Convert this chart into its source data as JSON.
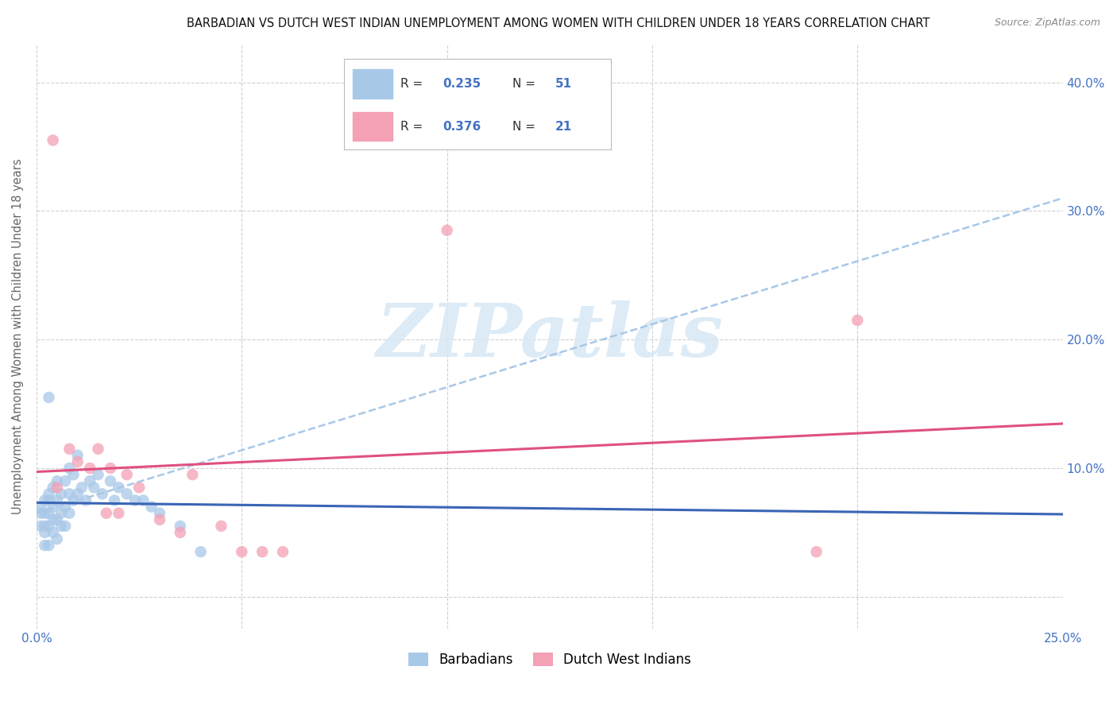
{
  "title": "BARBADIAN VS DUTCH WEST INDIAN UNEMPLOYMENT AMONG WOMEN WITH CHILDREN UNDER 18 YEARS CORRELATION CHART",
  "source": "Source: ZipAtlas.com",
  "ylabel": "Unemployment Among Women with Children Under 18 years",
  "xlim": [
    0.0,
    0.25
  ],
  "ylim": [
    -0.025,
    0.43
  ],
  "barbadians_x": [
    0.001,
    0.001,
    0.001,
    0.002,
    0.002,
    0.002,
    0.002,
    0.002,
    0.003,
    0.003,
    0.003,
    0.003,
    0.003,
    0.004,
    0.004,
    0.004,
    0.004,
    0.005,
    0.005,
    0.005,
    0.005,
    0.006,
    0.006,
    0.006,
    0.007,
    0.007,
    0.007,
    0.008,
    0.008,
    0.008,
    0.009,
    0.009,
    0.01,
    0.01,
    0.011,
    0.012,
    0.013,
    0.014,
    0.015,
    0.016,
    0.018,
    0.019,
    0.02,
    0.022,
    0.024,
    0.026,
    0.028,
    0.03,
    0.035,
    0.04,
    0.003
  ],
  "barbadians_y": [
    0.055,
    0.065,
    0.07,
    0.04,
    0.055,
    0.065,
    0.075,
    0.05,
    0.04,
    0.055,
    0.065,
    0.075,
    0.08,
    0.05,
    0.06,
    0.07,
    0.085,
    0.045,
    0.06,
    0.075,
    0.09,
    0.055,
    0.065,
    0.08,
    0.055,
    0.07,
    0.09,
    0.065,
    0.08,
    0.1,
    0.075,
    0.095,
    0.08,
    0.11,
    0.085,
    0.075,
    0.09,
    0.085,
    0.095,
    0.08,
    0.09,
    0.075,
    0.085,
    0.08,
    0.075,
    0.075,
    0.07,
    0.065,
    0.055,
    0.035,
    0.155
  ],
  "dutch_x": [
    0.004,
    0.005,
    0.008,
    0.01,
    0.013,
    0.015,
    0.017,
    0.018,
    0.02,
    0.022,
    0.025,
    0.03,
    0.035,
    0.038,
    0.045,
    0.05,
    0.055,
    0.06,
    0.1,
    0.19,
    0.2
  ],
  "dutch_y": [
    0.355,
    0.085,
    0.115,
    0.105,
    0.1,
    0.115,
    0.065,
    0.1,
    0.065,
    0.095,
    0.085,
    0.06,
    0.05,
    0.095,
    0.055,
    0.035,
    0.035,
    0.035,
    0.285,
    0.035,
    0.215
  ],
  "R_barbadians": 0.235,
  "N_barbadians": 51,
  "R_dutch": 0.376,
  "N_dutch": 21,
  "barbadians_color": "#a8c8e8",
  "dutch_color": "#f4a0b5",
  "barbadians_line_color": "#3a65b5",
  "dutch_line_color": "#e05080",
  "dashed_line_color": "#a8c8e8",
  "watermark_text": "ZIPatlas",
  "watermark_color": "#d8e8f5",
  "background_color": "#ffffff",
  "grid_color": "#d0d0d0",
  "legend_R_color": "#4472c4",
  "legend_text_color": "#333333"
}
